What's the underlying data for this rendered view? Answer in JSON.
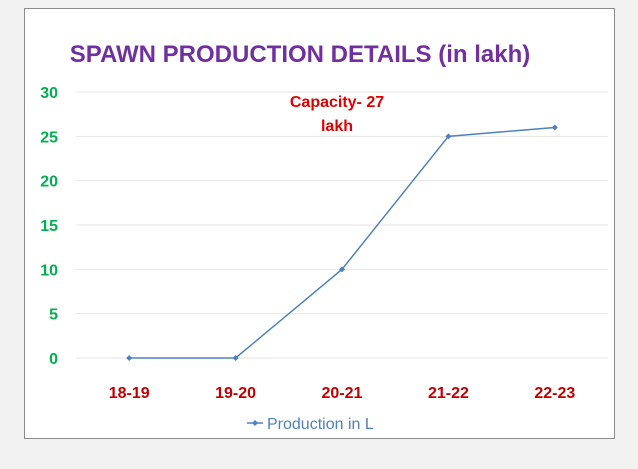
{
  "chart_data": {
    "type": "line",
    "title": "SPAWN PRODUCTION DETAILS (in lakh)",
    "annotation": [
      "Capacity- 27",
      "lakh"
    ],
    "categories": [
      "18-19",
      "19-20",
      "20-21",
      "21-22",
      "22-23"
    ],
    "series": [
      {
        "name": "Production in L",
        "values": [
          0,
          0,
          10,
          25,
          26
        ]
      }
    ],
    "ylim": [
      0,
      30
    ],
    "yticks": [
      "0",
      "5",
      "10",
      "15",
      "20",
      "25",
      "30"
    ],
    "grid": true,
    "legend": "bottom",
    "colors": {
      "title": "#7030a0",
      "annotation": "#e00000",
      "ytick": "#00b050",
      "xtick": "#c00000",
      "line": "#4f81bd",
      "grid": "#e6e6e6",
      "legend_text": "#4f81bd"
    }
  }
}
